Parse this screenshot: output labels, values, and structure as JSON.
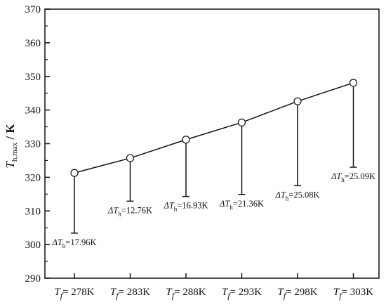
{
  "chart_data": {
    "type": "line",
    "title": "",
    "xlabel": "",
    "ylabel": {
      "symbol": "T",
      "subscript": "h,max",
      "unit": " / K"
    },
    "ylim": [
      290,
      370
    ],
    "yticks": [
      290,
      300,
      310,
      320,
      330,
      340,
      350,
      360,
      370
    ],
    "grid": false,
    "categories": [
      {
        "symbol": "T",
        "subscript": "f",
        "value": "= 278K"
      },
      {
        "symbol": "T",
        "subscript": "f",
        "value": "= 283K"
      },
      {
        "symbol": "T",
        "subscript": "f",
        "value": "= 288K"
      },
      {
        "symbol": "T",
        "subscript": "f",
        "value": "= 293K"
      },
      {
        "symbol": "T",
        "subscript": "f",
        "value": "= 298K"
      },
      {
        "symbol": "T",
        "subscript": "f",
        "value": "= 303K"
      }
    ],
    "series": [
      {
        "values": [
          321.3,
          325.7,
          331.2,
          336.3,
          342.6,
          348.1
        ],
        "lower_values": [
          303.4,
          312.9,
          314.3,
          314.9,
          317.5,
          323.0
        ]
      }
    ],
    "annotations": [
      {
        "symbol": "ΔT",
        "subscript": "h",
        "value": "=17.96K"
      },
      {
        "symbol": "ΔT",
        "subscript": "h",
        "value": "=12.76K"
      },
      {
        "symbol": "ΔT",
        "subscript": "h",
        "value": "=16.93K"
      },
      {
        "symbol": "ΔT",
        "subscript": "h",
        "value": "=21.36K"
      },
      {
        "symbol": "ΔT",
        "subscript": "h",
        "value": "=25.08K"
      },
      {
        "symbol": "ΔT",
        "subscript": "h",
        "value": "=25.09K"
      }
    ]
  }
}
